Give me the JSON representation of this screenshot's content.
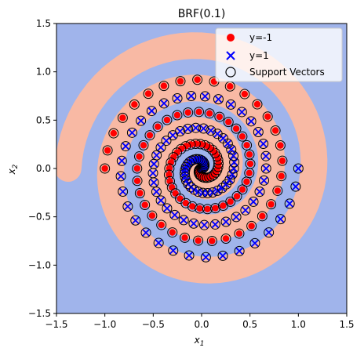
{
  "chart_data": {
    "type": "scatter",
    "title": "BRF(0.1)",
    "xlabel": "x",
    "xlabel_sub": "1",
    "ylabel": "x",
    "ylabel_sub": "2",
    "xlim": [
      -1.5,
      1.5
    ],
    "ylim": [
      -1.5,
      1.5
    ],
    "xticks": [
      "−1.5",
      "−1.0",
      "−0.5",
      "0.0",
      "0.5",
      "1.0",
      "1.5"
    ],
    "yticks": [
      "−1.5",
      "−1.0",
      "−0.5",
      "0.0",
      "0.5",
      "1.0",
      "1.5"
    ],
    "legend_position": "top-right",
    "grid": false,
    "series": [
      {
        "name": "y=-1",
        "marker": "circle",
        "color": "#ff0000",
        "spiral": {
          "r_start": 0.0,
          "r_end": 1.0,
          "turns": 3.0,
          "phase_deg": 180,
          "points": 100
        }
      },
      {
        "name": "y=1",
        "marker": "x",
        "color": "#0000ff",
        "spiral": {
          "r_start": 0.0,
          "r_end": 1.0,
          "turns": 3.0,
          "phase_deg": 0,
          "points": 100
        }
      }
    ],
    "support_vectors": {
      "name": "Support Vectors",
      "marker": "open-circle",
      "color": "#000000"
    },
    "background_colors": {
      "class_pos": "#a0b4eb",
      "class_neg": "#f8b9a4",
      "boundary": "#6b78e0"
    }
  }
}
